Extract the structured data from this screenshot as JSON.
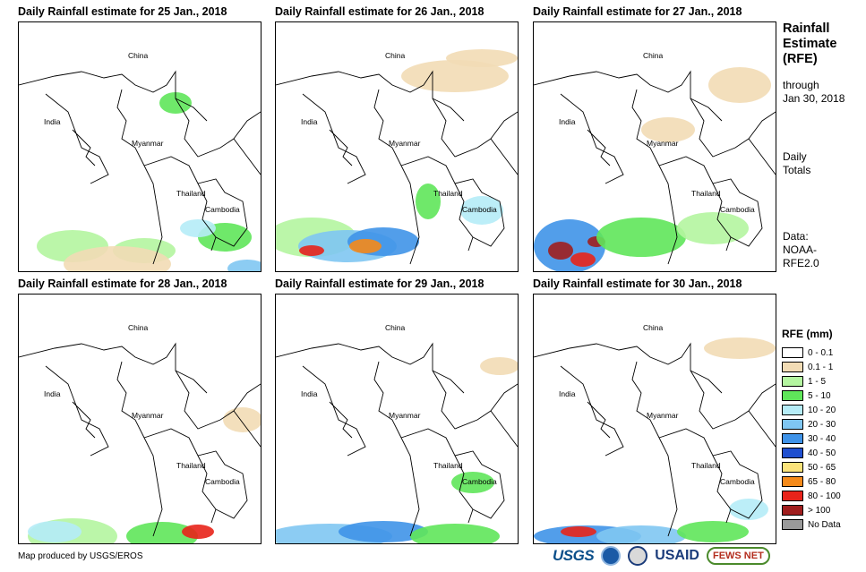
{
  "panels": [
    {
      "title": "Daily Rainfall estimate for 25 Jan., 2018",
      "day": "25"
    },
    {
      "title": "Daily Rainfall estimate for 26 Jan., 2018",
      "day": "26"
    },
    {
      "title": "Daily Rainfall estimate for 27 Jan., 2018",
      "day": "27"
    },
    {
      "title": "Daily Rainfall estimate for 28 Jan., 2018",
      "day": "28"
    },
    {
      "title": "Daily Rainfall estimate for 29 Jan., 2018",
      "day": "29"
    },
    {
      "title": "Daily Rainfall estimate for 30 Jan., 2018",
      "day": "30"
    }
  ],
  "map_labels": {
    "china": "China",
    "india": "India",
    "myanmar": "Myanmar",
    "thailand": "Thailand",
    "cambodia": "Cambodia"
  },
  "sidebar": {
    "title_lines": [
      "Rainfall",
      "Estimate",
      "(RFE)"
    ],
    "through_lines": [
      "through",
      "Jan 30, 2018"
    ],
    "totals_lines": [
      "Daily",
      "Totals"
    ],
    "data_lines": [
      "Data:",
      "NOAA-",
      "RFE2.0"
    ]
  },
  "legend": {
    "title": "RFE (mm)",
    "items": [
      {
        "label": "0 - 0.1",
        "color": "#ffffff"
      },
      {
        "label": "0.1 - 1",
        "color": "#f2dcb5"
      },
      {
        "label": "1 - 5",
        "color": "#b4f5a0"
      },
      {
        "label": "5 - 10",
        "color": "#5fe65a"
      },
      {
        "label": "10 - 20",
        "color": "#b5ecf7"
      },
      {
        "label": "20 - 30",
        "color": "#7fc6f2"
      },
      {
        "label": "30 - 40",
        "color": "#3f93e8"
      },
      {
        "label": "40 - 50",
        "color": "#1f4fd0"
      },
      {
        "label": "50 - 65",
        "color": "#fbe37a"
      },
      {
        "label": "65 - 80",
        "color": "#f58a1a"
      },
      {
        "label": "80 - 100",
        "color": "#e8231a"
      },
      {
        "label": "> 100",
        "color": "#a01e1e"
      },
      {
        "label": "No Data",
        "color": "#9a9a9a"
      }
    ]
  },
  "credit": "Map produced by USGS/EROS",
  "logos": {
    "usgs": "USGS",
    "usaid": "USAID",
    "fewsnet": "FEWS NET"
  }
}
